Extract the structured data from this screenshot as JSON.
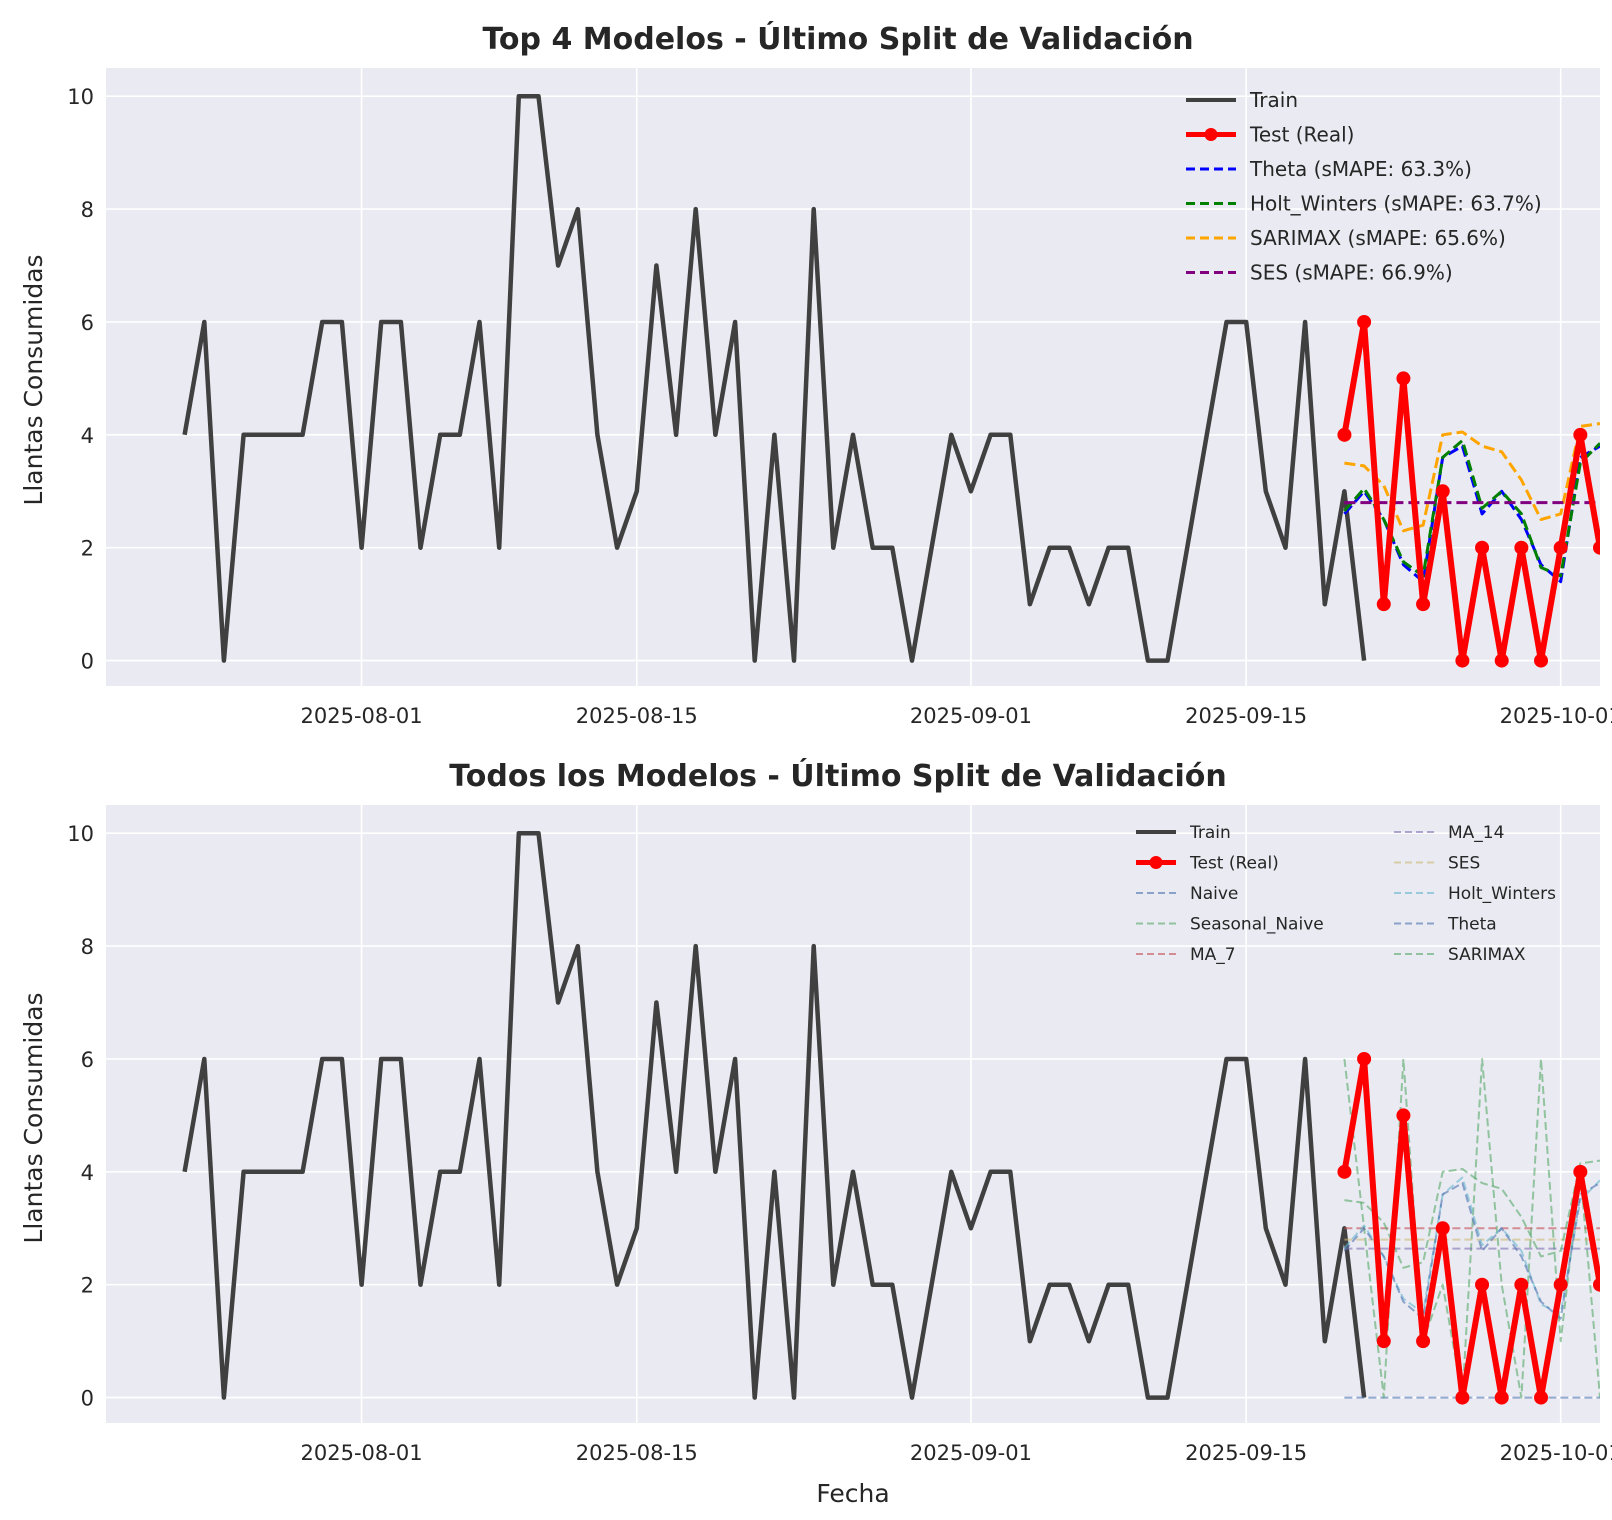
{
  "figure": {
    "xlabel": "Fecha",
    "xticks": [
      "2025-08-01",
      "2025-08-15",
      "2025-09-01",
      "2025-09-15",
      "2025-10-01"
    ],
    "yticks": [
      0,
      2,
      4,
      6,
      8,
      10
    ],
    "colors": {
      "background": "#eaeaf2",
      "grid": "#ffffff",
      "train": "#404040",
      "test": "#ff0000"
    }
  },
  "chart_data": [
    {
      "type": "line",
      "title": "Top 4 Modelos - Último Split de Validación",
      "ylabel": "Llantas Consumidas",
      "ylim": [
        -0.45,
        10.5
      ],
      "xlim": [
        "2025-07-19",
        "2025-10-03"
      ],
      "grid": true,
      "legend_position": "top-right",
      "series": [
        {
          "name": "Train",
          "style": "solid",
          "color": "#404040",
          "start": "2025-07-23",
          "values": [
            4,
            6,
            0,
            4,
            4,
            4,
            4,
            6,
            6,
            2,
            6,
            6,
            2,
            4,
            4,
            6,
            2,
            10,
            10,
            7,
            8,
            4,
            2,
            3,
            7,
            4,
            8,
            4,
            6,
            0,
            4,
            0,
            8,
            2,
            4,
            2,
            2,
            0,
            2,
            4,
            3,
            4,
            4,
            1,
            2,
            2,
            1,
            2,
            2,
            0,
            0,
            2,
            4,
            6,
            6,
            3,
            2,
            6,
            1,
            3,
            0
          ]
        },
        {
          "name": "Test (Real)",
          "style": "solid-markers",
          "color": "#ff0000",
          "start": "2025-09-20",
          "values": [
            4,
            6,
            1,
            5,
            1,
            3,
            0,
            2,
            0,
            2,
            0,
            2,
            4,
            2
          ]
        },
        {
          "name": "Theta (sMAPE: 63.3%)",
          "style": "dashed",
          "color": "#0000ff",
          "start": "2025-09-20",
          "values": [
            2.6,
            3.0,
            2.5,
            1.7,
            1.4,
            3.6,
            3.8,
            2.6,
            3.0,
            2.5,
            1.7,
            1.4,
            3.6,
            3.8
          ]
        },
        {
          "name": "Holt_Winters (sMAPE: 63.7%)",
          "style": "dashed",
          "color": "#008000",
          "start": "2025-09-20",
          "values": [
            2.65,
            3.05,
            2.5,
            1.75,
            1.5,
            3.6,
            3.9,
            2.7,
            3.0,
            2.6,
            1.65,
            1.5,
            3.5,
            3.85
          ]
        },
        {
          "name": "SARIMAX (sMAPE: 65.6%)",
          "style": "dashed",
          "color": "#ffa500",
          "start": "2025-09-20",
          "values": [
            3.5,
            3.45,
            3.1,
            2.3,
            2.4,
            4.0,
            4.05,
            3.8,
            3.7,
            3.2,
            2.5,
            2.6,
            4.15,
            4.2
          ]
        },
        {
          "name": "SES (sMAPE: 66.9%)",
          "style": "dashed",
          "color": "#800080",
          "start": "2025-09-20",
          "values": [
            2.8,
            2.8,
            2.8,
            2.8,
            2.8,
            2.8,
            2.8,
            2.8,
            2.8,
            2.8,
            2.8,
            2.8,
            2.8,
            2.8
          ]
        }
      ]
    },
    {
      "type": "line",
      "title": "Todos los Modelos - Último Split de Validación",
      "ylabel": "Llantas Consumidas",
      "xlabel": "Fecha",
      "ylim": [
        -0.45,
        10.5
      ],
      "xlim": [
        "2025-07-19",
        "2025-10-03"
      ],
      "grid": true,
      "legend_position": "top-right",
      "legend_columns": 2,
      "series": [
        {
          "name": "Train",
          "style": "solid",
          "color": "#404040",
          "start": "2025-07-23",
          "values": [
            4,
            6,
            0,
            4,
            4,
            4,
            4,
            6,
            6,
            2,
            6,
            6,
            2,
            4,
            4,
            6,
            2,
            10,
            10,
            7,
            8,
            4,
            2,
            3,
            7,
            4,
            8,
            4,
            6,
            0,
            4,
            0,
            8,
            2,
            4,
            2,
            2,
            0,
            2,
            4,
            3,
            4,
            4,
            1,
            2,
            2,
            1,
            2,
            2,
            0,
            0,
            2,
            4,
            6,
            6,
            3,
            2,
            6,
            1,
            3,
            0
          ]
        },
        {
          "name": "Test (Real)",
          "style": "solid-markers",
          "color": "#ff0000",
          "start": "2025-09-20",
          "values": [
            4,
            6,
            1,
            5,
            1,
            3,
            0,
            2,
            0,
            2,
            0,
            2,
            4,
            2
          ]
        },
        {
          "name": "Naive",
          "style": "dashed-faint",
          "color": "#4c72b0",
          "start": "2025-09-20",
          "values": [
            0,
            0,
            0,
            0,
            0,
            0,
            0,
            0,
            0,
            0,
            0,
            0,
            0,
            0
          ]
        },
        {
          "name": "Seasonal_Naive",
          "style": "dashed-faint",
          "color": "#55a868",
          "start": "2025-09-20",
          "values": [
            6,
            3,
            0,
            6,
            1,
            2,
            0,
            6,
            2,
            0,
            6,
            1,
            4,
            0
          ]
        },
        {
          "name": "MA_7",
          "style": "dashed-faint",
          "color": "#c44e52",
          "start": "2025-09-20",
          "values": [
            3,
            3,
            3,
            3,
            3,
            3,
            3,
            3,
            3,
            3,
            3,
            3,
            3,
            3
          ]
        },
        {
          "name": "MA_14",
          "style": "dashed-faint",
          "color": "#8172b3",
          "start": "2025-09-20",
          "values": [
            2.64,
            2.64,
            2.64,
            2.64,
            2.64,
            2.64,
            2.64,
            2.64,
            2.64,
            2.64,
            2.64,
            2.64,
            2.64,
            2.64
          ]
        },
        {
          "name": "SES",
          "style": "dashed-faint",
          "color": "#ccb974",
          "start": "2025-09-20",
          "values": [
            2.8,
            2.8,
            2.8,
            2.8,
            2.8,
            2.8,
            2.8,
            2.8,
            2.8,
            2.8,
            2.8,
            2.8,
            2.8,
            2.8
          ]
        },
        {
          "name": "Holt_Winters",
          "style": "dashed-faint",
          "color": "#64b5cd",
          "start": "2025-09-20",
          "values": [
            2.65,
            3.05,
            2.5,
            1.75,
            1.5,
            3.6,
            3.9,
            2.7,
            3.0,
            2.6,
            1.65,
            1.5,
            3.5,
            3.85
          ]
        },
        {
          "name": "Theta",
          "style": "dashed-faint",
          "color": "#4c72b0",
          "start": "2025-09-20",
          "values": [
            2.6,
            3.0,
            2.5,
            1.7,
            1.4,
            3.6,
            3.8,
            2.6,
            3.0,
            2.5,
            1.7,
            1.4,
            3.6,
            3.8
          ]
        },
        {
          "name": "SARIMAX",
          "style": "dashed-faint",
          "color": "#55a868",
          "start": "2025-09-20",
          "values": [
            3.5,
            3.45,
            3.1,
            2.3,
            2.4,
            4.0,
            4.05,
            3.8,
            3.7,
            3.2,
            2.5,
            2.6,
            4.15,
            4.2
          ]
        }
      ]
    }
  ]
}
